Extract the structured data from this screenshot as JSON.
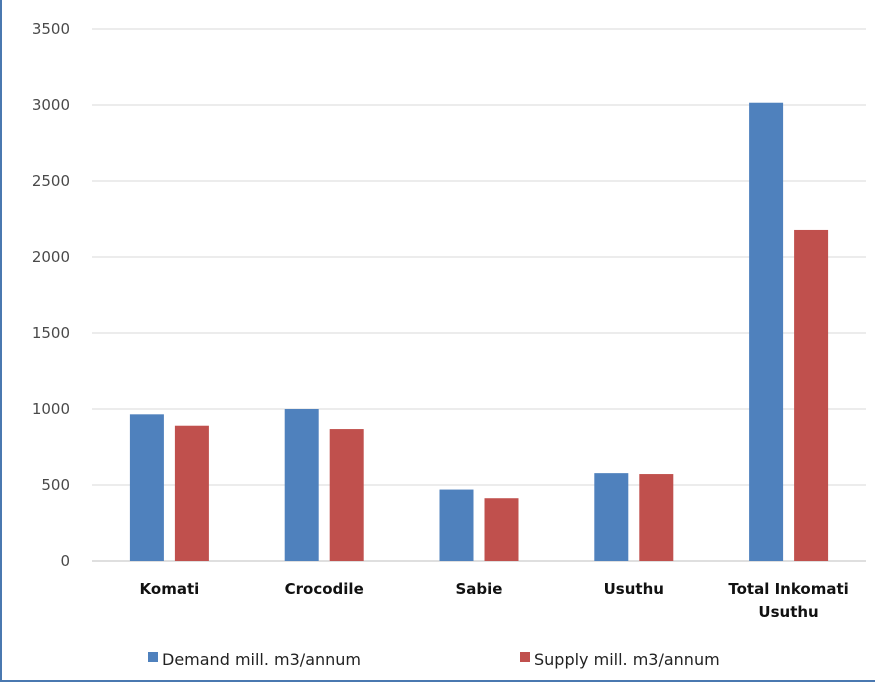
{
  "chart_data": {
    "type": "bar",
    "title": "",
    "xlabel": "",
    "ylabel": "",
    "categories": [
      [
        "Komati"
      ],
      [
        "Crocodile"
      ],
      [
        "Sabie"
      ],
      [
        "Usuthu"
      ],
      [
        "Total Inkomati",
        "Usuthu"
      ]
    ],
    "series": [
      {
        "name": "Demand mill. m3/annum",
        "color": "#4f81bd",
        "values": [
          965,
          1000,
          470,
          578,
          3015
        ]
      },
      {
        "name": "Supply mill. m3/annum",
        "color": "#c0504d",
        "values": [
          890,
          868,
          413,
          572,
          2178
        ]
      }
    ],
    "ylim": [
      0,
      3500
    ],
    "yticks": [
      "0",
      "500",
      "1000",
      "1500",
      "2000",
      "2500",
      "3000",
      "3500"
    ],
    "grid": true,
    "legend_position": "bottom"
  }
}
